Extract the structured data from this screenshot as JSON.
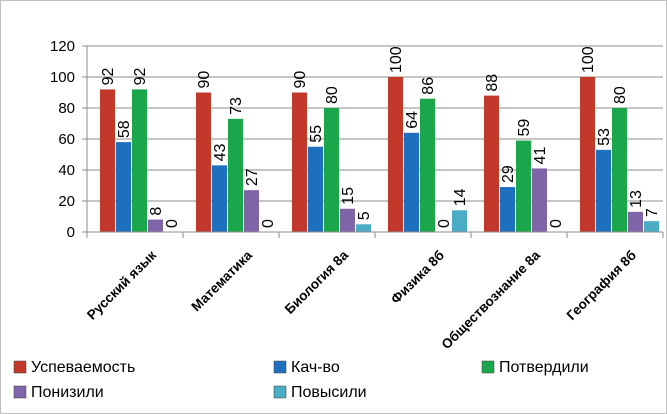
{
  "chart_data": {
    "type": "bar",
    "title": "",
    "xlabel": "",
    "ylabel": "",
    "ylim": [
      0,
      120
    ],
    "yticks": [
      0,
      20,
      40,
      60,
      80,
      100,
      120
    ],
    "grid": true,
    "legend_position": "bottom",
    "categories": [
      "Русский язык",
      "Математика",
      "Биология 8а",
      "Физика 8б",
      "Обществознание 8а",
      "География 8б"
    ],
    "series": [
      {
        "name": "Успеваемость",
        "color": "#c0392b",
        "values": [
          92,
          90,
          90,
          100,
          88,
          100
        ]
      },
      {
        "name": "Кач-во",
        "color": "#1f6fbf",
        "values": [
          58,
          43,
          55,
          64,
          29,
          53
        ]
      },
      {
        "name": "Потвердили",
        "color": "#1aa64a",
        "values": [
          92,
          73,
          80,
          86,
          59,
          80
        ]
      },
      {
        "name": "Понизили",
        "color": "#7f64a8",
        "values": [
          8,
          27,
          15,
          0,
          41,
          13
        ]
      },
      {
        "name": "Повысили",
        "color": "#4bacc6",
        "values": [
          0,
          0,
          5,
          14,
          0,
          7
        ]
      }
    ]
  }
}
